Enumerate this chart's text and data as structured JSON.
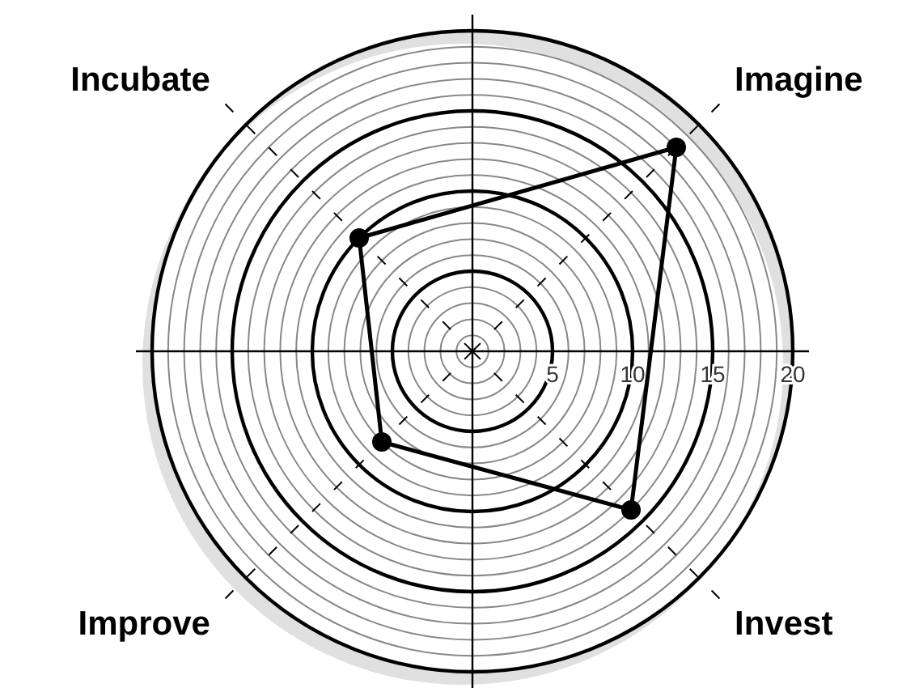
{
  "chart_data": {
    "type": "radar",
    "categories": [
      "Imagine",
      "Invest",
      "Improve",
      "Incubate"
    ],
    "series": [
      {
        "color": "#000000",
        "values": [
          18,
          14,
          8,
          10
        ]
      }
    ],
    "ylim": [
      0,
      20
    ],
    "yticks": [
      5,
      10,
      15,
      20
    ],
    "grid": true,
    "marker": "circle",
    "line_style": "solid"
  }
}
